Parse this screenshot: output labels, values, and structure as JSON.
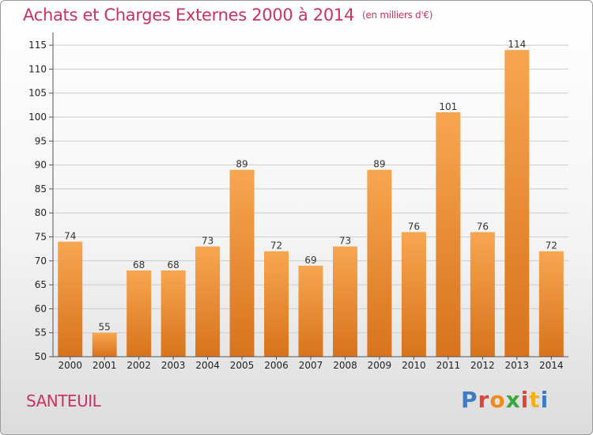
{
  "header": {
    "title": "Achats et Charges Externes 2000 à 2014",
    "unit": "(en milliers d'€)"
  },
  "footer": {
    "city": "SANTEUIL",
    "logo": {
      "letters": [
        "P",
        "r",
        "o",
        "x",
        "i",
        "t",
        "i"
      ]
    }
  },
  "colors": {
    "title": "#c8335f",
    "bar_light": "#f7a650",
    "bar_dark": "#d8731c",
    "grid": "#cccccc",
    "logo": [
      "#3b7cc4",
      "#e0433b",
      "#f08a1c",
      "#3aa83c",
      "#e0433b",
      "#f0b21c",
      "#3b7cc4"
    ]
  },
  "chart_data": {
    "type": "bar",
    "categories": [
      "2000",
      "2001",
      "2002",
      "2003",
      "2004",
      "2005",
      "2006",
      "2007",
      "2008",
      "2009",
      "2010",
      "2011",
      "2012",
      "2013",
      "2014"
    ],
    "values": [
      74,
      55,
      68,
      68,
      73,
      89,
      72,
      69,
      73,
      89,
      76,
      101,
      76,
      114,
      72
    ],
    "ylim": [
      50,
      117
    ],
    "yticks": [
      50,
      55,
      60,
      65,
      70,
      75,
      80,
      85,
      90,
      95,
      100,
      105,
      110,
      115
    ],
    "grid": true,
    "data_labels": true
  }
}
